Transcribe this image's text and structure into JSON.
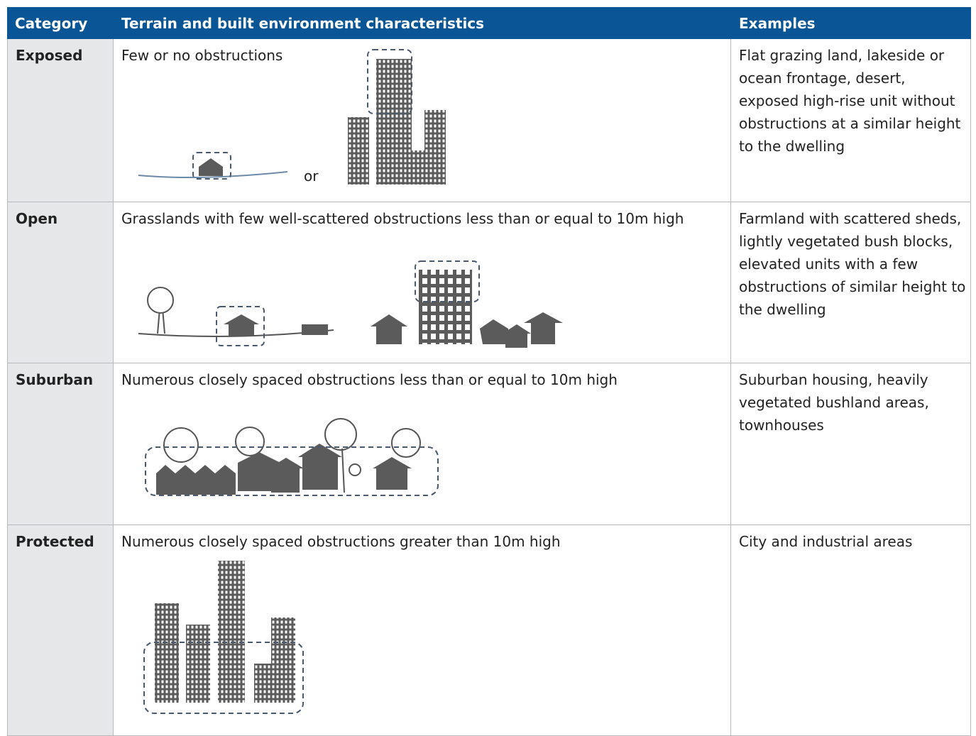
{
  "table": {
    "headers": [
      "Category",
      "Terrain and built environment characteristics",
      "Examples"
    ],
    "rows": [
      {
        "category": "Exposed",
        "description": "Few or no obstructions",
        "illustration_text": "or",
        "examples": "Flat grazing land, lakeside or ocean frontage, desert, exposed high-rise unit without obstructions at a similar height to the dwelling"
      },
      {
        "category": "Open",
        "description": "Grasslands with few well-scattered obstructions less than or equal to 10m high",
        "examples": "Farmland with scattered sheds, lightly vegetated bush blocks, elevated units with a few obstructions of similar height to the dwelling"
      },
      {
        "category": "Suburban",
        "description": "Numerous closely spaced obstructions less than or equal to 10m high",
        "examples": "Suburban housing, heavily vegetated bushland areas, townhouses"
      },
      {
        "category": "Protected",
        "description": "Numerous closely spaced obstructions greater than 10m high",
        "examples": "City and industrial areas"
      }
    ]
  }
}
